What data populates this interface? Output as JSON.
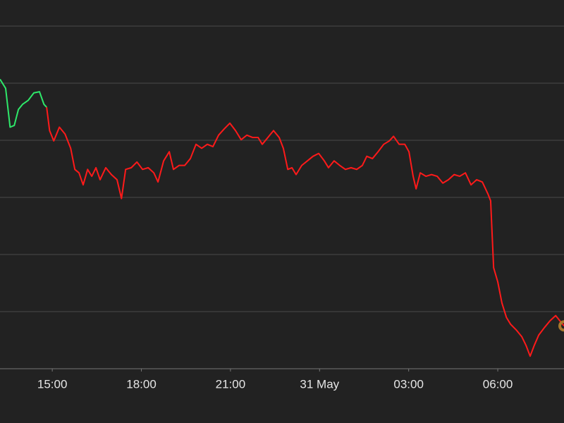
{
  "chart_data": {
    "type": "line",
    "x": [
      -1.76,
      -1.57,
      -1.42,
      -1.28,
      -1.14,
      -1.0,
      -0.81,
      -0.62,
      -0.43,
      -0.28,
      -0.19,
      -0.09,
      0.05,
      0.24,
      0.43,
      0.62,
      0.76,
      0.9,
      1.04,
      1.19,
      1.33,
      1.47,
      1.61,
      1.8,
      1.99,
      2.18,
      2.33,
      2.47,
      2.66,
      2.85,
      3.04,
      3.23,
      3.42,
      3.56,
      3.75,
      3.94,
      4.08,
      4.27,
      4.46,
      4.65,
      4.84,
      5.03,
      5.22,
      5.41,
      5.6,
      5.79,
      5.98,
      6.17,
      6.36,
      6.55,
      6.74,
      6.93,
      7.07,
      7.26,
      7.45,
      7.64,
      7.78,
      7.93,
      8.07,
      8.21,
      8.4,
      8.59,
      8.78,
      8.97,
      9.16,
      9.3,
      9.49,
      9.68,
      9.87,
      10.06,
      10.25,
      10.44,
      10.59,
      10.78,
      10.97,
      11.16,
      11.35,
      11.49,
      11.68,
      11.87,
      12.01,
      12.15,
      12.25,
      12.39,
      12.58,
      12.77,
      12.96,
      13.15,
      13.34,
      13.53,
      13.72,
      13.91,
      14.1,
      14.29,
      14.48,
      14.67,
      14.76,
      14.86,
      15.0,
      15.14,
      15.29,
      15.43,
      15.62,
      15.81,
      15.95,
      16.09,
      16.23,
      16.38,
      16.57,
      16.76,
      16.95,
      17.09,
      17.23
    ],
    "series": [
      {
        "color": "#2ee86a",
        "values": [
          5.07,
          4.91,
          4.23,
          4.26,
          4.54,
          4.63,
          4.7,
          4.83,
          4.85,
          4.63,
          4.58,
          null,
          null,
          null,
          null,
          null,
          null,
          null,
          null,
          null,
          null,
          null,
          null,
          null,
          null,
          null,
          null,
          null,
          null,
          null,
          null,
          null,
          null,
          null,
          null,
          null,
          null,
          null,
          null,
          null,
          null,
          null,
          null,
          null,
          null,
          null,
          null,
          null,
          null,
          null,
          null,
          null,
          null,
          null,
          null,
          null,
          null,
          null,
          null,
          null,
          null,
          null,
          null,
          null,
          null,
          null,
          null,
          null,
          null,
          null,
          null,
          null,
          null,
          null,
          null,
          null,
          null,
          null,
          null,
          null,
          null,
          null,
          null,
          null,
          null,
          null,
          null,
          null,
          null,
          null,
          null,
          null,
          null,
          null,
          null,
          null,
          null,
          null,
          null,
          null,
          null,
          null,
          null,
          null,
          null,
          null,
          null,
          null,
          null,
          null,
          null,
          null,
          null
        ]
      },
      {
        "color": "#ff1a1a",
        "values": [
          null,
          null,
          null,
          null,
          null,
          null,
          null,
          null,
          null,
          null,
          4.58,
          4.17,
          3.99,
          4.23,
          4.11,
          3.86,
          3.49,
          3.43,
          3.22,
          3.49,
          3.37,
          3.52,
          3.31,
          3.52,
          3.4,
          3.31,
          2.98,
          3.49,
          3.52,
          3.62,
          3.49,
          3.52,
          3.43,
          3.27,
          3.64,
          3.8,
          3.49,
          3.56,
          3.56,
          3.68,
          3.93,
          3.86,
          3.93,
          3.89,
          4.09,
          4.2,
          4.3,
          4.17,
          4.01,
          4.09,
          4.05,
          4.05,
          3.93,
          4.05,
          4.17,
          4.05,
          3.86,
          3.49,
          3.52,
          3.4,
          3.56,
          3.64,
          3.72,
          3.77,
          3.64,
          3.52,
          3.64,
          3.56,
          3.49,
          3.52,
          3.49,
          3.56,
          3.72,
          3.68,
          3.8,
          3.93,
          3.99,
          4.07,
          3.93,
          3.93,
          3.8,
          3.37,
          3.15,
          3.43,
          3.37,
          3.4,
          3.37,
          3.25,
          3.31,
          3.4,
          3.37,
          3.43,
          3.22,
          3.31,
          3.27,
          3.06,
          2.94,
          1.77,
          1.52,
          1.15,
          0.9,
          0.78,
          0.68,
          0.56,
          0.41,
          0.22,
          0.41,
          0.59,
          0.72,
          0.84,
          0.93,
          0.84,
          0.75
        ]
      }
    ],
    "last_point_color": "#a8792c",
    "xlim": [
      -1.76,
      17.23
    ],
    "xticks": [
      {
        "value": 0,
        "label": "15:00"
      },
      {
        "value": 3,
        "label": "18:00"
      },
      {
        "value": 6,
        "label": "21:00"
      },
      {
        "value": 9,
        "label": "31 May"
      },
      {
        "value": 12,
        "label": "03:00"
      },
      {
        "value": 15,
        "label": "06:00"
      }
    ],
    "ylim": [
      0,
      6.457
    ],
    "yticks": [
      0,
      1,
      2,
      3,
      4,
      5,
      6
    ],
    "grid": true
  }
}
